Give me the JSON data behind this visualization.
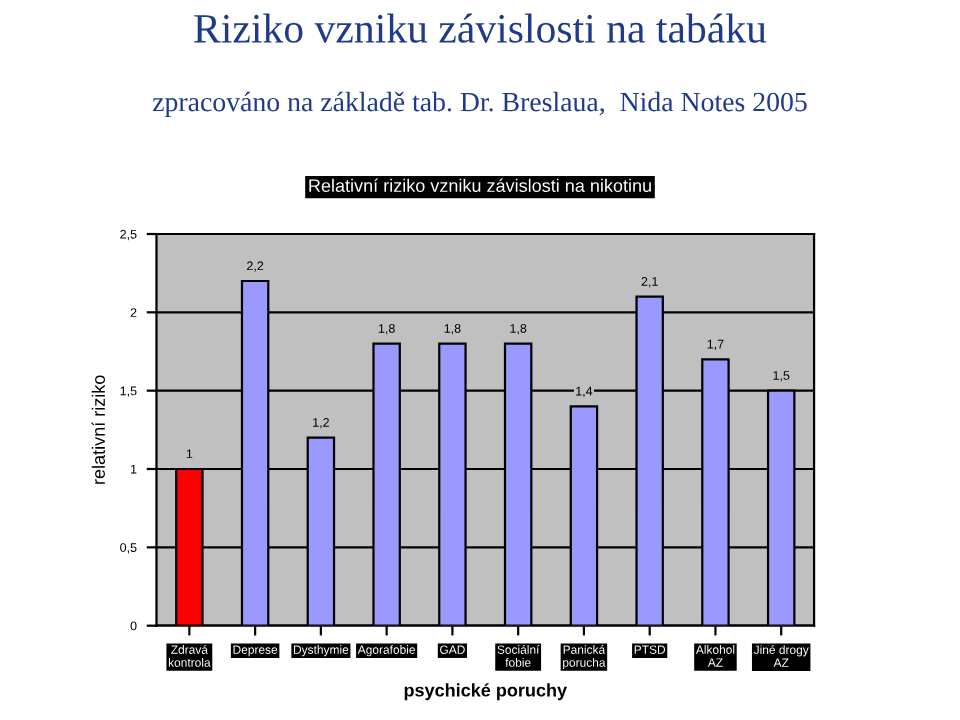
{
  "chart_data": {
    "type": "bar",
    "title": "Riziko vzniku závislosti na tabáku",
    "subtitle": "zpracováno na základě tab. Dr. Breslaua,  Nida Notes 2005",
    "annotations": [
      "Relativní riziko vzniku závislosti na nikotinu"
    ],
    "xlabel": "psychické poruchy",
    "ylabel": "relativní riziko",
    "categories": [
      "Zdravá kontrola",
      "Deprese",
      "Dysthymie",
      "Agorafobie",
      "GAD",
      "Sociální fobie",
      "Panická porucha",
      "PTSD",
      "Alkohol AZ",
      "Jiné drogy AZ"
    ],
    "values": [
      1,
      2.2,
      1.2,
      1.8,
      1.8,
      1.8,
      1.4,
      2.1,
      1.7,
      1.5
    ],
    "value_labels": [
      "1",
      "2,2",
      "1,2",
      "1,8",
      "1,8",
      "1,8",
      "1,4",
      "2,1",
      "1,7",
      "1,5"
    ],
    "colors": [
      "#ff0000",
      "#9999ff",
      "#9999ff",
      "#9999ff",
      "#9999ff",
      "#9999ff",
      "#9999ff",
      "#9999ff",
      "#9999ff",
      "#9999ff"
    ],
    "ylim": [
      0,
      2.5
    ],
    "yticks": [
      0,
      {
        "value": 0.5,
        "label": "0,5"
      },
      1,
      {
        "value": 1.5,
        "label": "1,5"
      },
      2,
      {
        "value": 2.5,
        "label": "2,5"
      }
    ],
    "grid": "y",
    "legend": false
  }
}
